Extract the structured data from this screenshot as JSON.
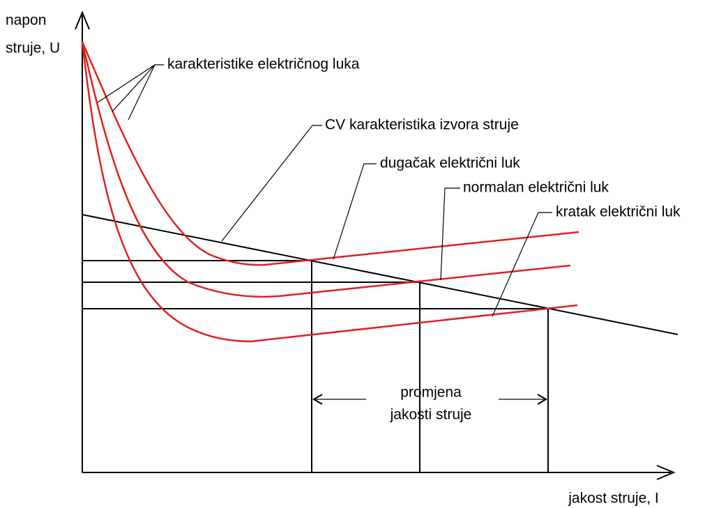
{
  "y_axis_label": {
    "line1": "napon",
    "line2": "struje, U"
  },
  "x_axis_label": "jakost struje, I",
  "labels": {
    "arc_characteristics": "karakteristike električnog luka",
    "cv_source": "CV karakteristika izvora struje",
    "long_arc": "dugačak električni luk",
    "normal_arc": "normalan električni luk",
    "short_arc": "kratak električni luk"
  },
  "current_change": {
    "line1": "promjena",
    "line2": "jakosti struje"
  }
}
